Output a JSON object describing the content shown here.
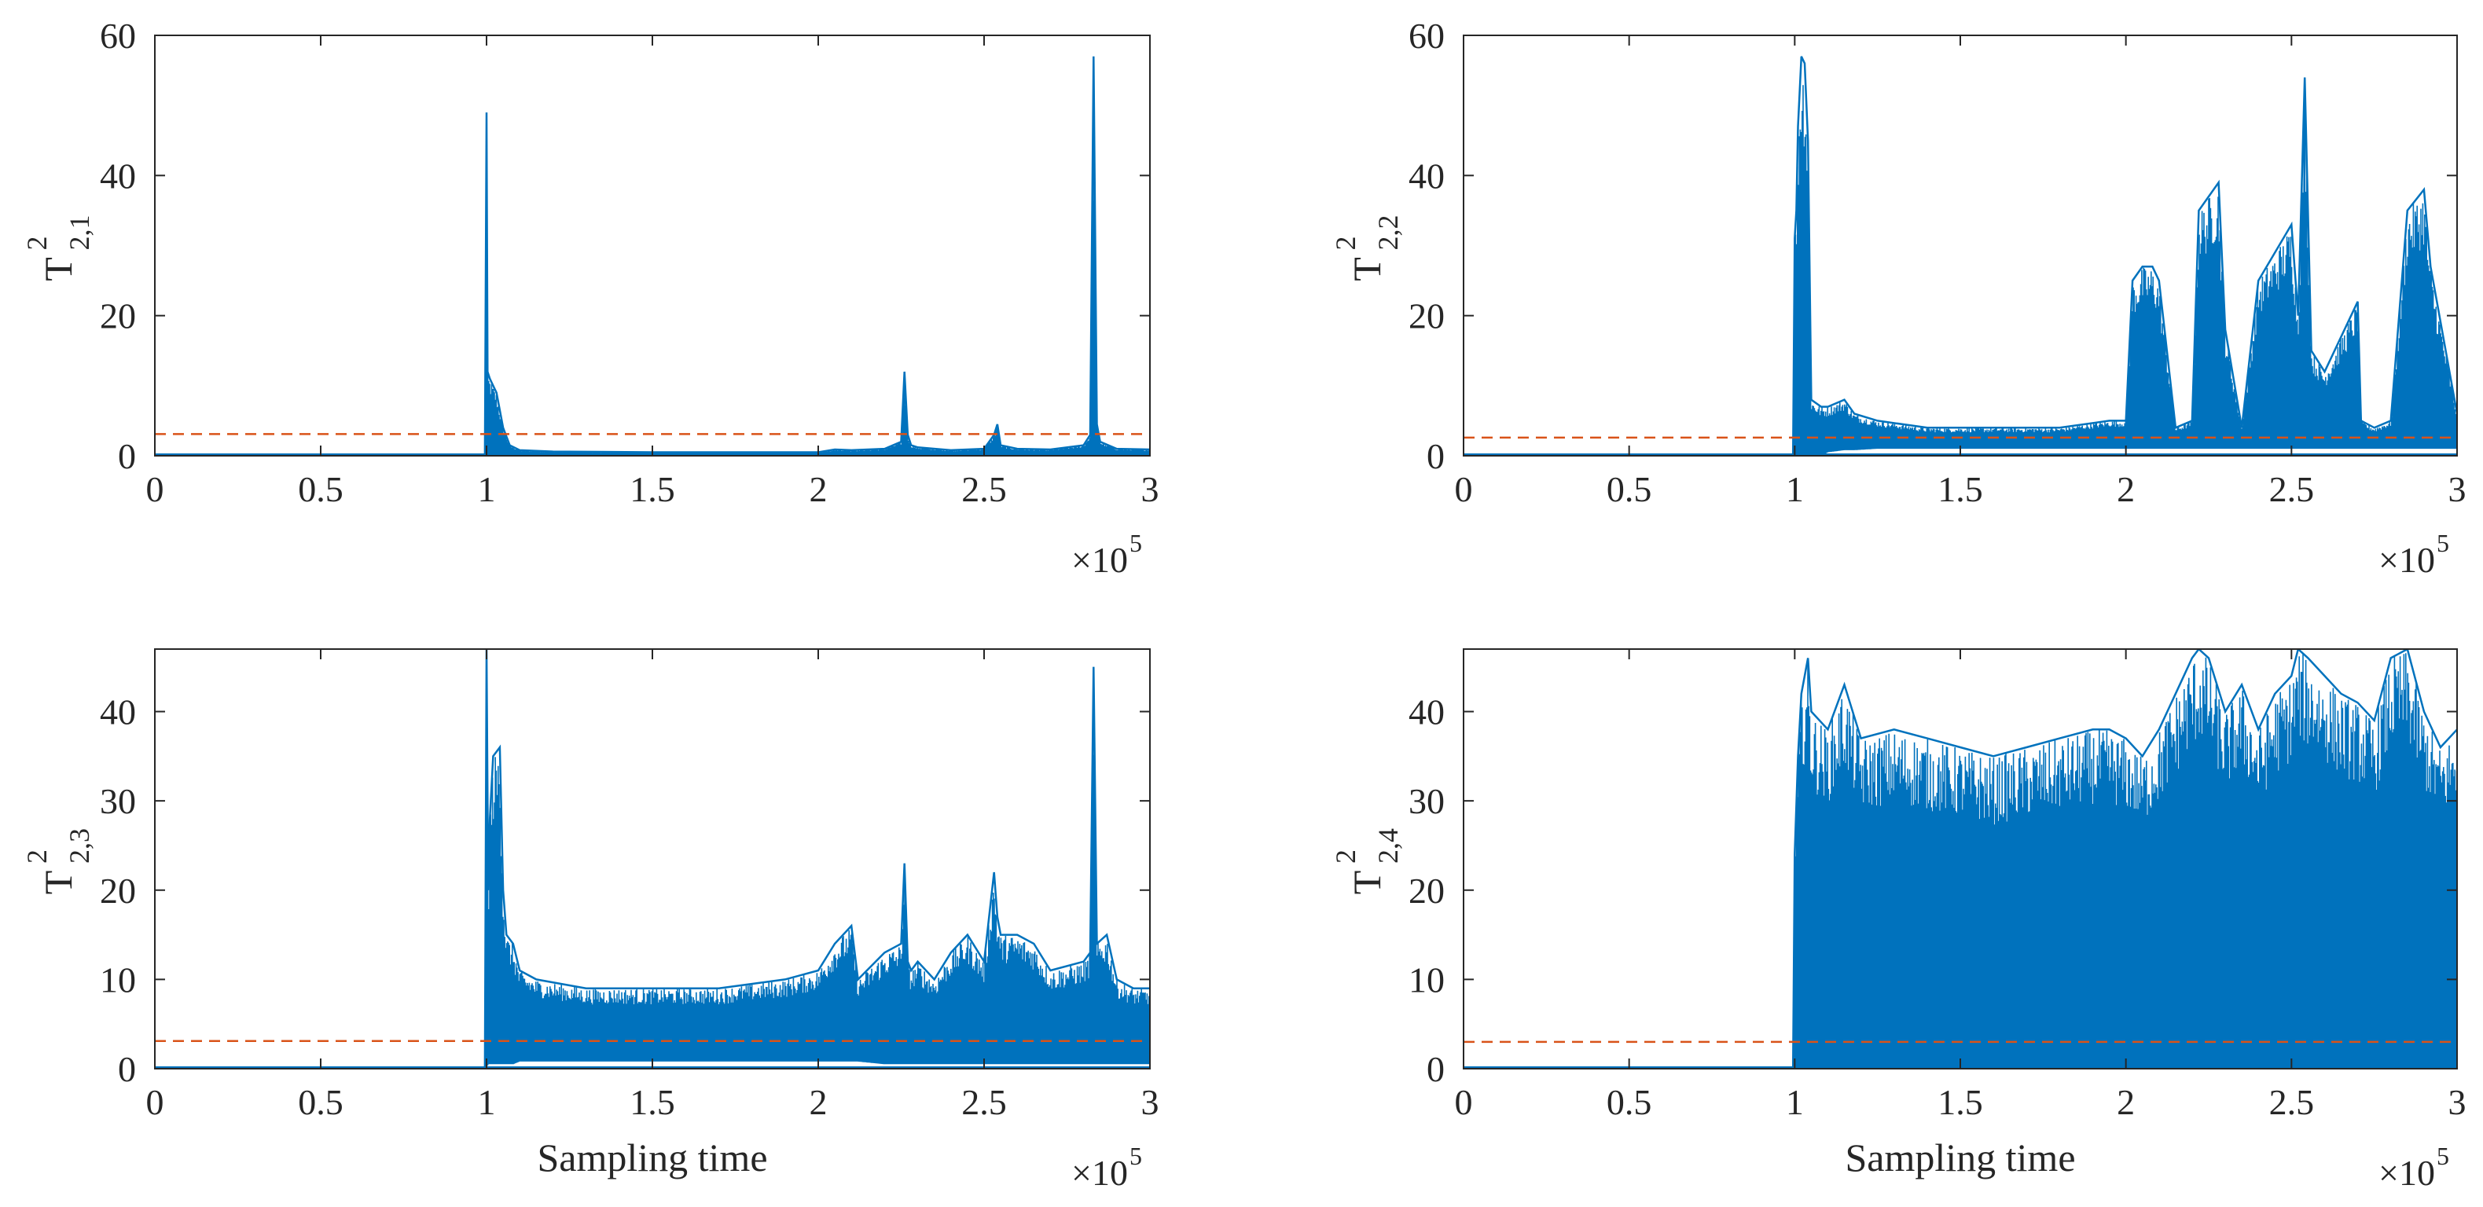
{
  "chart_data": [
    {
      "type": "line",
      "ylabel_base": "T",
      "ylabel_sup": "2",
      "ylabel_sub": "2,1",
      "xlabel": "",
      "x_multiplier_base": "×10",
      "x_multiplier_exp": "5",
      "xlim": [
        0,
        3
      ],
      "ylim": [
        0,
        60
      ],
      "xticks": [
        0,
        0.5,
        1,
        1.5,
        2,
        2.5,
        3
      ],
      "xtick_labels": [
        "0",
        "0.5",
        "1",
        "1.5",
        "2",
        "2.5",
        "3"
      ],
      "yticks": [
        0,
        20,
        40,
        60
      ],
      "ytick_labels": [
        "0",
        "20",
        "40",
        "60"
      ],
      "threshold": 3.1,
      "series_color": "#0072BD",
      "threshold_color": "#D95319",
      "envelope": {
        "x": [
          0,
          0.995,
          1.0,
          1.003,
          1.01,
          1.03,
          1.05,
          1.07,
          1.1,
          1.2,
          1.5,
          2.0,
          2.05,
          2.1,
          2.2,
          2.25,
          2.26,
          2.27,
          2.28,
          2.3,
          2.4,
          2.5,
          2.53,
          2.54,
          2.55,
          2.6,
          2.7,
          2.8,
          2.82,
          2.83,
          2.84,
          2.85,
          2.9,
          3.0
        ],
        "upper": [
          0.1,
          0.1,
          49,
          12,
          11,
          9,
          4,
          1.5,
          0.8,
          0.6,
          0.5,
          0.5,
          0.9,
          0.8,
          1.0,
          2.0,
          12,
          3.0,
          1.5,
          1.2,
          0.8,
          1.0,
          3.0,
          4.5,
          1.5,
          1.0,
          0.9,
          1.5,
          3.0,
          57,
          4.5,
          2.0,
          1.0,
          0.9
        ],
        "lower": [
          0,
          0,
          0,
          0,
          0,
          0,
          0,
          0,
          0,
          0,
          0,
          0,
          0,
          0,
          0,
          0,
          0,
          0,
          0,
          0,
          0,
          0,
          0,
          0,
          0,
          0,
          0,
          0,
          0,
          0,
          0,
          0,
          0,
          0
        ]
      }
    },
    {
      "type": "line",
      "ylabel_base": "T",
      "ylabel_sup": "2",
      "ylabel_sub": "2,2",
      "xlabel": "",
      "x_multiplier_base": "×10",
      "x_multiplier_exp": "5",
      "xlim": [
        0,
        3
      ],
      "ylim": [
        0,
        60
      ],
      "xticks": [
        0,
        0.5,
        1,
        1.5,
        2,
        2.5,
        3
      ],
      "xtick_labels": [
        "0",
        "0.5",
        "1",
        "1.5",
        "2",
        "2.5",
        "3"
      ],
      "yticks": [
        0,
        20,
        40,
        60
      ],
      "ytick_labels": [
        "0",
        "20",
        "40",
        "60"
      ],
      "threshold": 2.6,
      "series_color": "#0072BD",
      "threshold_color": "#D95319",
      "envelope": {
        "x": [
          0,
          0.995,
          1.0,
          1.005,
          1.01,
          1.02,
          1.03,
          1.04,
          1.05,
          1.08,
          1.1,
          1.15,
          1.18,
          1.25,
          1.4,
          1.6,
          1.8,
          1.95,
          2.0,
          2.02,
          2.05,
          2.08,
          2.1,
          2.15,
          2.2,
          2.22,
          2.28,
          2.3,
          2.35,
          2.4,
          2.5,
          2.52,
          2.54,
          2.56,
          2.6,
          2.7,
          2.71,
          2.75,
          2.8,
          2.85,
          2.9,
          2.92,
          3.0
        ],
        "upper": [
          0.1,
          0.1,
          31,
          35,
          47,
          57,
          56,
          45,
          8,
          7,
          7,
          8,
          6,
          5,
          4,
          4,
          4,
          5,
          5,
          25,
          27,
          27,
          25,
          4,
          5,
          35,
          39,
          18,
          4,
          25,
          33,
          20,
          54,
          15,
          12,
          22,
          5,
          4,
          5,
          35,
          38,
          27,
          6
        ],
        "lower": [
          0,
          0,
          0,
          0,
          0,
          0,
          0,
          0,
          0,
          0,
          0.5,
          0.8,
          0.8,
          1.0,
          1.0,
          1.0,
          1.0,
          1.0,
          1.0,
          1.0,
          1.0,
          1.0,
          1.0,
          1.0,
          1.0,
          1.0,
          1.0,
          1.0,
          1.0,
          1.0,
          1.0,
          1.0,
          1.0,
          1.0,
          1.0,
          1.0,
          1.0,
          1.0,
          1.0,
          1.0,
          1.0,
          1.0,
          1.0
        ]
      }
    },
    {
      "type": "line",
      "ylabel_base": "T",
      "ylabel_sup": "2",
      "ylabel_sub": "2,3",
      "xlabel": "Sampling time",
      "x_multiplier_base": "×10",
      "x_multiplier_exp": "5",
      "xlim": [
        0,
        3
      ],
      "ylim": [
        0,
        47
      ],
      "xticks": [
        0,
        0.5,
        1,
        1.5,
        2,
        2.5,
        3
      ],
      "xtick_labels": [
        "0",
        "0.5",
        "1",
        "1.5",
        "2",
        "2.5",
        "3"
      ],
      "yticks": [
        0,
        10,
        20,
        30,
        40
      ],
      "ytick_labels": [
        "0",
        "10",
        "20",
        "30",
        "40"
      ],
      "threshold": 3.1,
      "series_color": "#0072BD",
      "threshold_color": "#D95319",
      "envelope": {
        "x": [
          0,
          0.995,
          1.0,
          1.005,
          1.01,
          1.02,
          1.04,
          1.05,
          1.06,
          1.08,
          1.1,
          1.15,
          1.3,
          1.5,
          1.7,
          1.9,
          2.0,
          2.05,
          2.1,
          2.12,
          2.2,
          2.25,
          2.26,
          2.27,
          2.28,
          2.3,
          2.35,
          2.4,
          2.45,
          2.5,
          2.53,
          2.54,
          2.55,
          2.6,
          2.65,
          2.7,
          2.8,
          2.82,
          2.83,
          2.84,
          2.87,
          2.9,
          2.95,
          3.0
        ],
        "upper": [
          0.1,
          0.1,
          47,
          20,
          28,
          35,
          36,
          20,
          15,
          14,
          11,
          10,
          9,
          9,
          9,
          10,
          11,
          14,
          16,
          10,
          13,
          14,
          23,
          12,
          11,
          12,
          10,
          13,
          15,
          12,
          22,
          17,
          15,
          15,
          14,
          11,
          12,
          13,
          45,
          14,
          15,
          10,
          9,
          9
        ],
        "lower": [
          0,
          0,
          0,
          0.5,
          0.5,
          0.5,
          0.5,
          0.5,
          0.5,
          0.5,
          0.8,
          0.8,
          0.8,
          0.8,
          0.8,
          0.8,
          0.8,
          0.8,
          0.8,
          0.8,
          0.5,
          0.5,
          0.5,
          0.5,
          0.5,
          0.5,
          0.5,
          0.5,
          0.5,
          0.5,
          0.5,
          0.5,
          0.5,
          0.5,
          0.5,
          0.5,
          0.5,
          0.5,
          0.5,
          0.5,
          0.5,
          0.5,
          0.5,
          0.5
        ]
      }
    },
    {
      "type": "line",
      "ylabel_base": "T",
      "ylabel_sup": "2",
      "ylabel_sub": "2,4",
      "xlabel": "Sampling time",
      "x_multiplier_base": "×10",
      "x_multiplier_exp": "5",
      "xlim": [
        0,
        3
      ],
      "ylim": [
        0,
        47
      ],
      "xticks": [
        0,
        0.5,
        1,
        1.5,
        2,
        2.5,
        3
      ],
      "xtick_labels": [
        "0",
        "0.5",
        "1",
        "1.5",
        "2",
        "2.5",
        "3"
      ],
      "yticks": [
        0,
        10,
        20,
        30,
        40
      ],
      "ytick_labels": [
        "0",
        "10",
        "20",
        "30",
        "40"
      ],
      "threshold": 3.0,
      "series_color": "#0072BD",
      "threshold_color": "#D95319",
      "envelope": {
        "x": [
          0,
          0.995,
          1.0,
          1.01,
          1.02,
          1.04,
          1.05,
          1.1,
          1.15,
          1.2,
          1.3,
          1.4,
          1.5,
          1.6,
          1.7,
          1.8,
          1.9,
          1.95,
          2.0,
          2.05,
          2.1,
          2.15,
          2.2,
          2.22,
          2.25,
          2.3,
          2.35,
          2.4,
          2.45,
          2.5,
          2.52,
          2.55,
          2.6,
          2.65,
          2.7,
          2.75,
          2.8,
          2.85,
          2.9,
          2.95,
          3.0
        ],
        "upper": [
          0.1,
          0.1,
          24,
          35,
          42,
          46,
          40,
          38,
          43,
          37,
          38,
          37,
          36,
          35,
          36,
          37,
          38,
          38,
          37,
          35,
          38,
          42,
          46,
          47,
          46,
          40,
          43,
          38,
          42,
          44,
          47,
          46,
          44,
          42,
          41,
          39,
          46,
          47,
          40,
          36,
          38
        ],
        "lower": [
          0,
          0,
          0,
          0,
          0,
          0,
          0,
          0,
          0,
          0,
          0,
          0,
          0,
          0,
          0,
          0,
          0,
          0,
          0,
          0,
          0,
          0,
          0,
          0,
          0,
          0,
          0,
          0,
          0,
          0,
          0,
          0,
          0,
          0,
          0,
          0,
          0,
          0,
          0,
          0,
          0
        ]
      }
    }
  ]
}
